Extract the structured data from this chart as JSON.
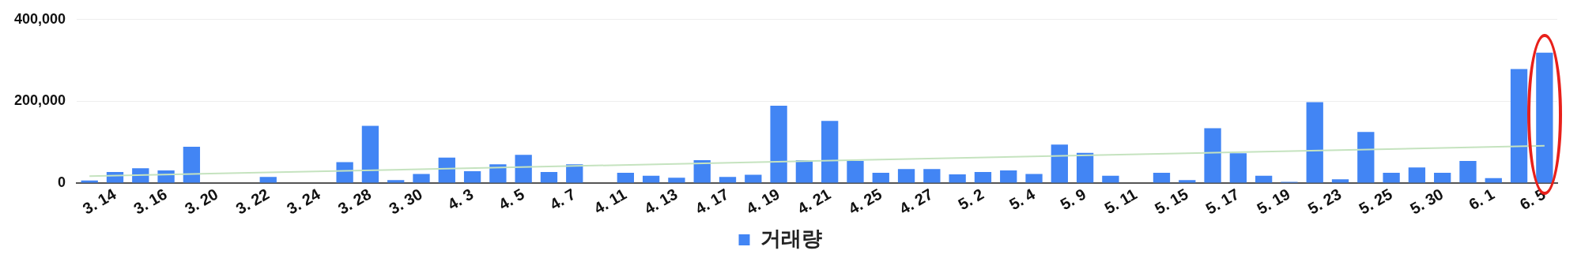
{
  "chart_data": {
    "type": "bar",
    "categories": [
      null,
      "3. 14",
      null,
      "3. 16",
      null,
      "3. 20",
      null,
      "3. 22",
      null,
      "3. 24",
      null,
      "3. 28",
      null,
      "3. 30",
      null,
      "4. 3",
      null,
      "4. 5",
      null,
      "4. 7",
      null,
      "4. 11",
      null,
      "4. 13",
      null,
      "4. 17",
      null,
      "4. 19",
      null,
      "4. 21",
      null,
      "4. 25",
      null,
      "4. 27",
      null,
      "5. 2",
      null,
      "5. 4",
      null,
      "5. 9",
      null,
      "5. 11",
      null,
      "5. 15",
      null,
      "5. 17",
      null,
      "5. 19",
      null,
      "5. 23",
      null,
      "5. 25",
      null,
      "5. 30",
      null,
      "6. 1",
      null,
      "6. 5"
    ],
    "series": [
      {
        "name": "거래량",
        "color": "#4285f4",
        "values": [
          6000,
          27000,
          36000,
          31000,
          89000,
          0,
          0,
          15000,
          0,
          0,
          51000,
          140000,
          7000,
          22000,
          62000,
          29000,
          46000,
          69000,
          27000,
          46000,
          0,
          25000,
          18000,
          13000,
          56000,
          15000,
          20000,
          189000,
          56000,
          152000,
          54000,
          25000,
          34000,
          34000,
          21000,
          27000,
          31000,
          22000,
          94000,
          74000,
          18000,
          0,
          25000,
          7000,
          134000,
          73000,
          18000,
          3000,
          198000,
          9000,
          125000,
          25000,
          38000,
          25000,
          54000,
          12000,
          279000,
          319000
        ]
      },
      {
        "type": "line",
        "color": "#c5e3bf",
        "values": [
          17000,
          null,
          null,
          null,
          null,
          null,
          null,
          null,
          null,
          null,
          null,
          null,
          null,
          null,
          null,
          null,
          null,
          null,
          null,
          null,
          null,
          null,
          null,
          null,
          null,
          null,
          null,
          null,
          null,
          null,
          null,
          null,
          null,
          null,
          null,
          null,
          null,
          null,
          null,
          null,
          null,
          null,
          null,
          null,
          null,
          null,
          null,
          null,
          null,
          null,
          null,
          null,
          null,
          null,
          null,
          null,
          null,
          91000
        ]
      }
    ],
    "ylim": [
      0,
      400000
    ],
    "yticks": [
      {
        "value": 0,
        "label": "0"
      },
      {
        "value": 200000,
        "label": "200,000"
      },
      {
        "value": 400000,
        "label": "400,000"
      }
    ],
    "grid": "y",
    "legend": "bottom",
    "marker": "none"
  }
}
